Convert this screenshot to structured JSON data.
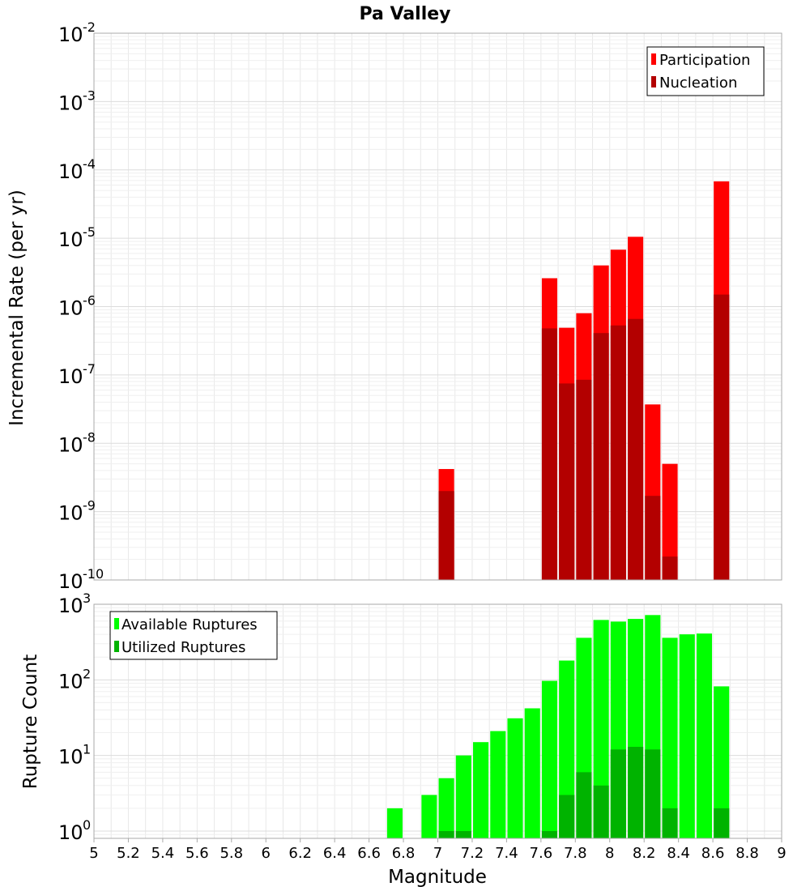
{
  "chart_data": [
    {
      "type": "bar",
      "title": "Pa Valley",
      "xlabel": "Magnitude",
      "ylabel": "Incremental Rate (per yr)",
      "yscale": "log",
      "xlim": [
        5,
        9
      ],
      "ylim": [
        1e-10,
        0.01
      ],
      "grid": true,
      "legend_position": "top-right",
      "y_tick_exponents": [
        "-2",
        "-3",
        "-4",
        "-5",
        "-6",
        "-7",
        "-8",
        "-9",
        "-10"
      ],
      "y_tick_base": "10",
      "series": [
        {
          "name": "Participation",
          "color": "#ff0000",
          "x": [
            7.05,
            7.65,
            7.75,
            7.85,
            7.95,
            8.05,
            8.15,
            8.25,
            8.35,
            8.65
          ],
          "values": [
            4.2e-09,
            2.6e-06,
            4.9e-07,
            8e-07,
            4e-06,
            6.8e-06,
            1.05e-05,
            3.7e-08,
            5e-09,
            6.8e-05
          ]
        },
        {
          "name": "Nucleation",
          "color": "#b30000",
          "x": [
            7.05,
            7.65,
            7.75,
            7.85,
            7.95,
            8.05,
            8.15,
            8.25,
            8.35,
            8.65
          ],
          "values": [
            2e-09,
            4.8e-07,
            7.5e-08,
            8.5e-08,
            4.1e-07,
            5.3e-07,
            6.6e-07,
            1.7e-09,
            2.2e-10,
            1.5e-06
          ]
        }
      ]
    },
    {
      "type": "bar",
      "xlabel": "Magnitude",
      "ylabel": "Rupture Count",
      "yscale": "log",
      "xlim": [
        5,
        9
      ],
      "ylim": [
        0.8,
        1000
      ],
      "grid": true,
      "legend_position": "top-left",
      "x_ticks": [
        "5",
        "5.2",
        "5.4",
        "5.6",
        "5.8",
        "6",
        "6.2",
        "6.4",
        "6.6",
        "6.8",
        "7",
        "7.2",
        "7.4",
        "7.6",
        "7.8",
        "8",
        "8.2",
        "8.4",
        "8.6",
        "8.8",
        "9"
      ],
      "y_tick_exponents": [
        "3",
        "2",
        "1",
        "0"
      ],
      "y_tick_base": "10",
      "series": [
        {
          "name": "Available Ruptures",
          "color": "#00ff00",
          "x": [
            6.75,
            6.95,
            7.05,
            7.15,
            7.25,
            7.35,
            7.45,
            7.55,
            7.65,
            7.75,
            7.85,
            7.95,
            8.05,
            8.15,
            8.25,
            8.35,
            8.45,
            8.55,
            8.65
          ],
          "values": [
            2,
            3,
            5,
            10,
            15,
            21,
            31,
            42,
            97,
            180,
            360,
            620,
            590,
            640,
            720,
            360,
            400,
            410,
            82
          ]
        },
        {
          "name": "Utilized Ruptures",
          "color": "#00b300",
          "x": [
            7.05,
            7.15,
            7.65,
            7.75,
            7.85,
            7.95,
            8.05,
            8.15,
            8.25,
            8.35,
            8.65
          ],
          "values": [
            1,
            1,
            1,
            3,
            6,
            4,
            12,
            13,
            12,
            2,
            2
          ]
        }
      ]
    }
  ]
}
